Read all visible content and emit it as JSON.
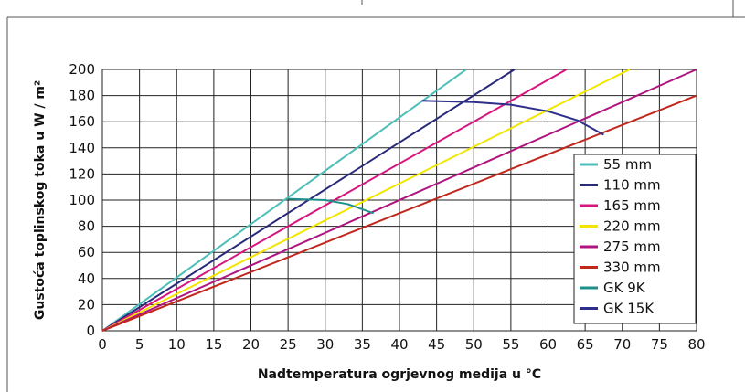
{
  "chart_data": {
    "type": "line",
    "title": "",
    "xlabel": "Nadtemperatura ogrjevnog medija u °C",
    "ylabel": "Gustoća toplinskog toka u W / m²",
    "xlim": [
      0,
      80
    ],
    "ylim": [
      0,
      200
    ],
    "xticks": [
      0,
      5,
      10,
      15,
      20,
      25,
      30,
      35,
      40,
      45,
      50,
      55,
      60,
      65,
      70,
      75,
      80
    ],
    "yticks": [
      0,
      20,
      40,
      60,
      80,
      100,
      120,
      140,
      160,
      180,
      200
    ],
    "grid": true,
    "legend_position": "right",
    "series": [
      {
        "name": "55 mm",
        "color": "#4dbfb8",
        "x": [
          0,
          49
        ],
        "y": [
          0,
          200
        ]
      },
      {
        "name": "110 mm",
        "color": "#2a2a7a",
        "x": [
          0,
          55.5
        ],
        "y": [
          0,
          200
        ]
      },
      {
        "name": "165 mm",
        "color": "#d6157f",
        "x": [
          0,
          62.5
        ],
        "y": [
          0,
          200
        ]
      },
      {
        "name": "220 mm",
        "color": "#f5e400",
        "x": [
          0,
          71
        ],
        "y": [
          0,
          200
        ]
      },
      {
        "name": "275 mm",
        "color": "#b0157f",
        "x": [
          0,
          80
        ],
        "y": [
          0,
          200
        ]
      },
      {
        "name": "330 mm",
        "color": "#c0281e",
        "x": [
          0,
          80
        ],
        "y": [
          0,
          180
        ]
      },
      {
        "name": "GK 9K",
        "color": "#1f8f8a",
        "x": [
          25,
          30,
          33,
          36.5
        ],
        "y": [
          101,
          100,
          97,
          90
        ]
      },
      {
        "name": "GK 15K",
        "color": "#2e2e8c",
        "x": [
          43,
          50,
          55,
          60,
          64,
          67.5
        ],
        "y": [
          176,
          175,
          173,
          168,
          161,
          150
        ]
      }
    ]
  }
}
